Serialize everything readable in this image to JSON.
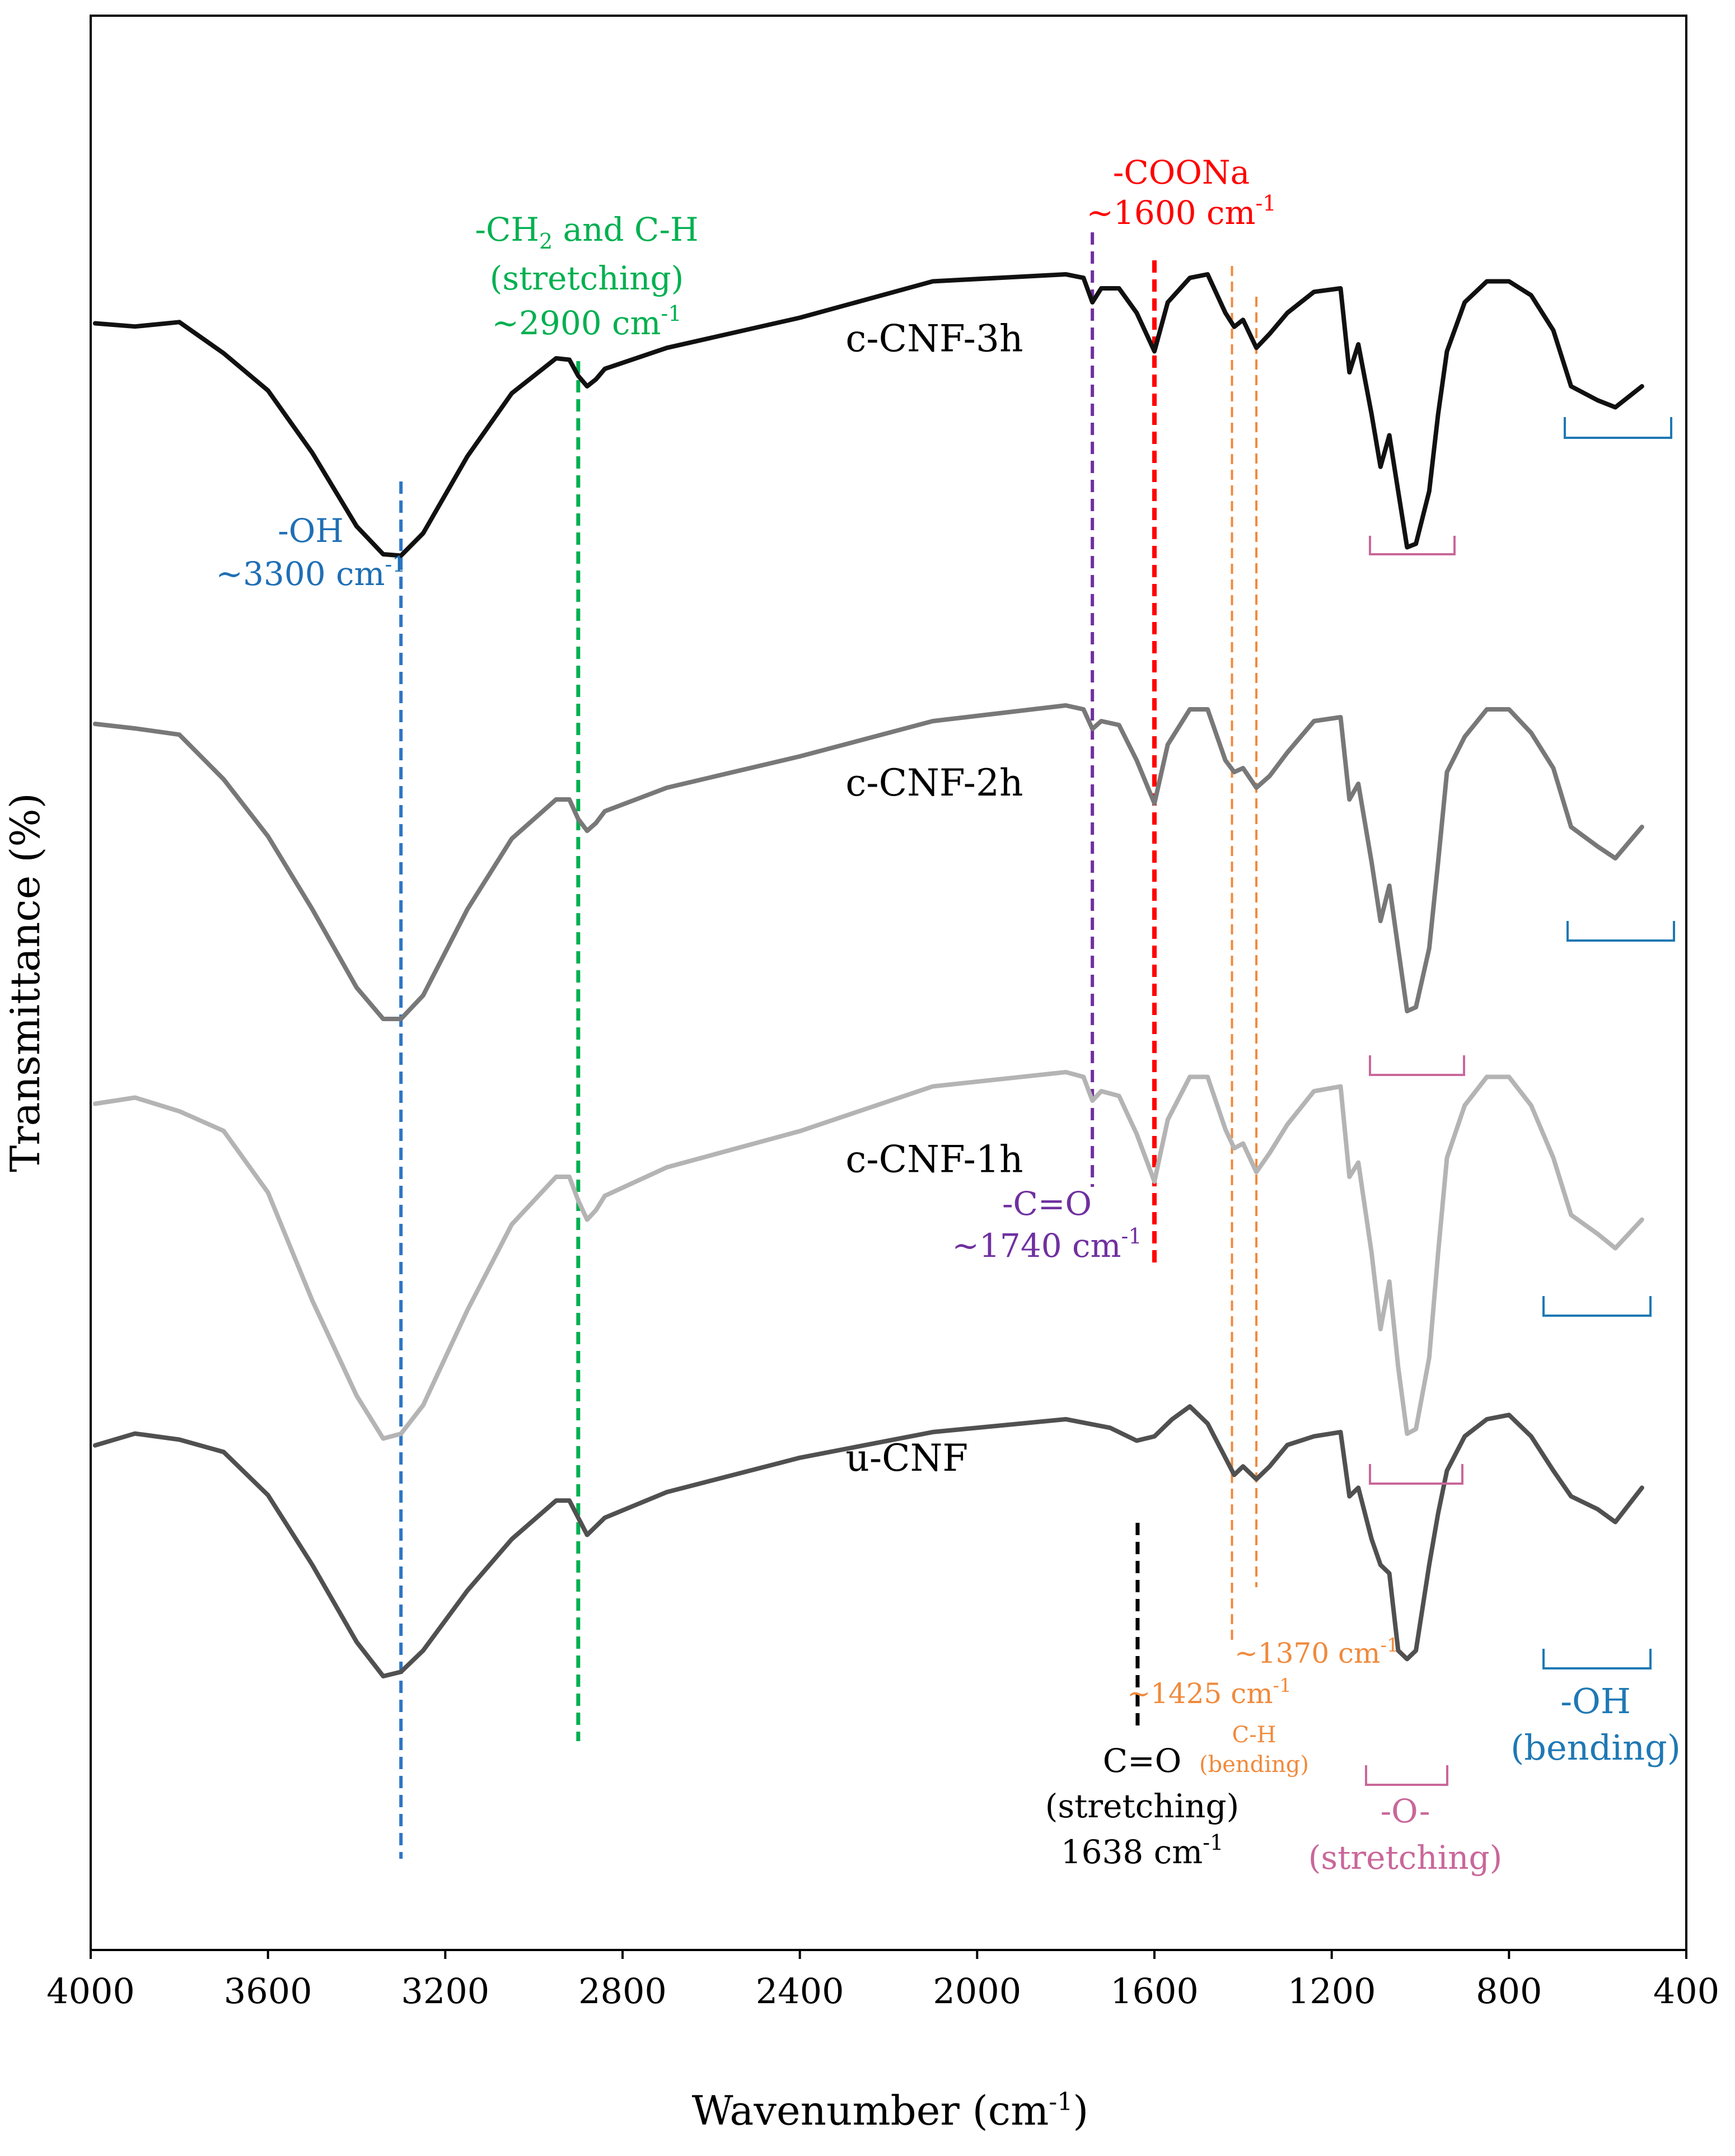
{
  "chart_data": {
    "type": "line",
    "title": "",
    "xlabel": "Wavenumber (cm",
    "xlabel_sup": "-1",
    "xlabel_close": ")",
    "ylabel": "Transmittance (%)",
    "xlim": [
      4000,
      400
    ],
    "x_reversed": true,
    "x_ticks": [
      "4000",
      "3600",
      "3200",
      "2800",
      "2400",
      "2000",
      "1600",
      "1200",
      "800",
      "400"
    ],
    "y_ticks": [],
    "grid": false,
    "legend": "none",
    "series": [
      {
        "name": "c-CNF-3h",
        "color": "#111111",
        "points": [
          [
            3990,
            0.7
          ],
          [
            3900,
            0.71
          ],
          [
            3800,
            0.73
          ],
          [
            3700,
            1.1
          ],
          [
            3600,
            1.65
          ],
          [
            3500,
            2.55
          ],
          [
            3400,
            3.6
          ],
          [
            3340,
            4.0
          ],
          [
            3300,
            4.02
          ],
          [
            3250,
            3.7
          ],
          [
            3150,
            2.6
          ],
          [
            3050,
            1.7
          ],
          [
            2950,
            1.2
          ],
          [
            2920,
            1.22
          ],
          [
            2900,
            1.45
          ],
          [
            2880,
            1.6
          ],
          [
            2860,
            1.5
          ],
          [
            2840,
            1.35
          ],
          [
            2700,
            1.05
          ],
          [
            2400,
            0.62
          ],
          [
            2100,
            0.1
          ],
          [
            1800,
            0.0
          ],
          [
            1760,
            0.05
          ],
          [
            1740,
            0.4
          ],
          [
            1720,
            0.2
          ],
          [
            1680,
            0.2
          ],
          [
            1640,
            0.55
          ],
          [
            1600,
            1.1
          ],
          [
            1570,
            0.4
          ],
          [
            1520,
            0.05
          ],
          [
            1480,
            0.0
          ],
          [
            1440,
            0.55
          ],
          [
            1420,
            0.75
          ],
          [
            1400,
            0.65
          ],
          [
            1370,
            1.05
          ],
          [
            1340,
            0.85
          ],
          [
            1300,
            0.55
          ],
          [
            1240,
            0.25
          ],
          [
            1180,
            0.2
          ],
          [
            1160,
            1.4
          ],
          [
            1140,
            1.0
          ],
          [
            1110,
            2.0
          ],
          [
            1090,
            2.75
          ],
          [
            1070,
            2.3
          ],
          [
            1050,
            3.1
          ],
          [
            1030,
            3.9
          ],
          [
            1010,
            3.85
          ],
          [
            980,
            3.1
          ],
          [
            960,
            2.0
          ],
          [
            940,
            1.1
          ],
          [
            900,
            0.4
          ],
          [
            850,
            0.1
          ],
          [
            800,
            0.1
          ],
          [
            750,
            0.3
          ],
          [
            700,
            0.8
          ],
          [
            660,
            1.6
          ],
          [
            600,
            1.8
          ],
          [
            560,
            1.9
          ],
          [
            500,
            1.6
          ]
        ],
        "label_wn": 2120,
        "label_y": 1.1
      },
      {
        "name": "c-CNF-2h",
        "color": "#787878",
        "points": [
          [
            3990,
            0.2
          ],
          [
            3900,
            0.3
          ],
          [
            3800,
            0.4
          ],
          [
            3700,
            0.9
          ],
          [
            3600,
            1.7
          ],
          [
            3500,
            2.6
          ],
          [
            3400,
            3.6
          ],
          [
            3340,
            4.0
          ],
          [
            3300,
            4.0
          ],
          [
            3250,
            3.7
          ],
          [
            3150,
            2.6
          ],
          [
            3050,
            1.7
          ],
          [
            2950,
            1.2
          ],
          [
            2920,
            1.2
          ],
          [
            2900,
            1.45
          ],
          [
            2880,
            1.6
          ],
          [
            2860,
            1.5
          ],
          [
            2840,
            1.35
          ],
          [
            2700,
            1.05
          ],
          [
            2400,
            0.65
          ],
          [
            2100,
            0.2
          ],
          [
            1800,
            0.0
          ],
          [
            1760,
            0.05
          ],
          [
            1740,
            0.3
          ],
          [
            1720,
            0.2
          ],
          [
            1680,
            0.25
          ],
          [
            1640,
            0.7
          ],
          [
            1600,
            1.25
          ],
          [
            1570,
            0.5
          ],
          [
            1520,
            0.05
          ],
          [
            1480,
            0.05
          ],
          [
            1440,
            0.7
          ],
          [
            1420,
            0.85
          ],
          [
            1400,
            0.8
          ],
          [
            1370,
            1.05
          ],
          [
            1340,
            0.9
          ],
          [
            1300,
            0.6
          ],
          [
            1240,
            0.2
          ],
          [
            1180,
            0.15
          ],
          [
            1160,
            1.2
          ],
          [
            1140,
            1.0
          ],
          [
            1110,
            2.0
          ],
          [
            1090,
            2.75
          ],
          [
            1070,
            2.3
          ],
          [
            1050,
            3.1
          ],
          [
            1030,
            3.9
          ],
          [
            1010,
            3.85
          ],
          [
            980,
            3.1
          ],
          [
            960,
            2.0
          ],
          [
            940,
            0.85
          ],
          [
            900,
            0.4
          ],
          [
            850,
            0.05
          ],
          [
            800,
            0.05
          ],
          [
            750,
            0.35
          ],
          [
            700,
            0.8
          ],
          [
            660,
            1.55
          ],
          [
            600,
            1.8
          ],
          [
            560,
            1.95
          ],
          [
            500,
            1.55
          ]
        ],
        "label_wn": 2120,
        "label_y": 1.15
      },
      {
        "name": "c-CNF-1h",
        "color": "#b4b4b4",
        "points": [
          [
            3990,
            0.3
          ],
          [
            3900,
            0.3
          ],
          [
            3800,
            0.4
          ],
          [
            3700,
            0.6
          ],
          [
            3600,
            1.3
          ],
          [
            3500,
            2.4
          ],
          [
            3400,
            3.4
          ],
          [
            3340,
            3.85
          ],
          [
            3300,
            3.8
          ],
          [
            3250,
            3.5
          ],
          [
            3150,
            2.5
          ],
          [
            3050,
            1.6
          ],
          [
            2950,
            1.1
          ],
          [
            2920,
            1.1
          ],
          [
            2900,
            1.35
          ],
          [
            2880,
            1.55
          ],
          [
            2860,
            1.45
          ],
          [
            2840,
            1.3
          ],
          [
            2700,
            1.0
          ],
          [
            2400,
            0.62
          ],
          [
            2100,
            0.15
          ],
          [
            1800,
            0.0
          ],
          [
            1760,
            0.05
          ],
          [
            1740,
            0.3
          ],
          [
            1720,
            0.2
          ],
          [
            1680,
            0.25
          ],
          [
            1640,
            0.65
          ],
          [
            1600,
            1.15
          ],
          [
            1570,
            0.5
          ],
          [
            1520,
            0.05
          ],
          [
            1480,
            0.05
          ],
          [
            1440,
            0.6
          ],
          [
            1420,
            0.8
          ],
          [
            1400,
            0.75
          ],
          [
            1370,
            1.05
          ],
          [
            1340,
            0.85
          ],
          [
            1300,
            0.55
          ],
          [
            1240,
            0.2
          ],
          [
            1180,
            0.15
          ],
          [
            1160,
            1.1
          ],
          [
            1140,
            0.95
          ],
          [
            1110,
            1.9
          ],
          [
            1090,
            2.7
          ],
          [
            1070,
            2.2
          ],
          [
            1050,
            3.1
          ],
          [
            1030,
            3.8
          ],
          [
            1010,
            3.75
          ],
          [
            980,
            3.0
          ],
          [
            960,
            1.9
          ],
          [
            940,
            0.9
          ],
          [
            900,
            0.35
          ],
          [
            850,
            0.05
          ],
          [
            800,
            0.05
          ],
          [
            750,
            0.35
          ],
          [
            700,
            0.9
          ],
          [
            660,
            1.5
          ],
          [
            600,
            1.7
          ],
          [
            560,
            1.85
          ],
          [
            500,
            1.55
          ]
        ],
        "label_wn": 2120,
        "label_y": 1.05
      },
      {
        "name": "u-CNF",
        "color": "#505050",
        "points": [
          [
            3990,
            0.3
          ],
          [
            3900,
            0.2
          ],
          [
            3800,
            0.2
          ],
          [
            3700,
            0.4
          ],
          [
            3600,
            0.9
          ],
          [
            3500,
            1.7
          ],
          [
            3400,
            2.6
          ],
          [
            3340,
            3.0
          ],
          [
            3300,
            2.95
          ],
          [
            3250,
            2.7
          ],
          [
            3150,
            2.0
          ],
          [
            3050,
            1.4
          ],
          [
            2950,
            0.95
          ],
          [
            2920,
            0.95
          ],
          [
            2900,
            1.15
          ],
          [
            2880,
            1.35
          ],
          [
            2860,
            1.25
          ],
          [
            2840,
            1.15
          ],
          [
            2700,
            0.85
          ],
          [
            2400,
            0.45
          ],
          [
            2100,
            0.15
          ],
          [
            1800,
            0.0
          ],
          [
            1700,
            0.1
          ],
          [
            1640,
            0.25
          ],
          [
            1600,
            0.2
          ],
          [
            1560,
            0.0
          ],
          [
            1520,
            -0.15
          ],
          [
            1480,
            0.05
          ],
          [
            1440,
            0.45
          ],
          [
            1420,
            0.65
          ],
          [
            1400,
            0.55
          ],
          [
            1370,
            0.7
          ],
          [
            1340,
            0.55
          ],
          [
            1300,
            0.3
          ],
          [
            1240,
            0.2
          ],
          [
            1180,
            0.15
          ],
          [
            1160,
            0.9
          ],
          [
            1140,
            0.8
          ],
          [
            1110,
            1.4
          ],
          [
            1090,
            1.7
          ],
          [
            1070,
            1.8
          ],
          [
            1050,
            2.7
          ],
          [
            1030,
            2.8
          ],
          [
            1010,
            2.7
          ],
          [
            980,
            1.7
          ],
          [
            960,
            1.1
          ],
          [
            940,
            0.6
          ],
          [
            900,
            0.2
          ],
          [
            850,
            0.0
          ],
          [
            800,
            -0.05
          ],
          [
            750,
            0.2
          ],
          [
            700,
            0.6
          ],
          [
            660,
            0.9
          ],
          [
            600,
            1.05
          ],
          [
            560,
            1.2
          ],
          [
            500,
            0.8
          ]
        ],
        "label_wn": 2120,
        "label_y": 0.6
      }
    ],
    "reference_lines": [
      {
        "wn": 3300,
        "color": "#2e75c6"
      },
      {
        "wn": 2900,
        "color": "#00b050"
      },
      {
        "wn": 1740,
        "color": "#7030a0"
      },
      {
        "wn": 1600,
        "color": "#ff0000"
      },
      {
        "wn": 1425,
        "color": "#f08a3c"
      },
      {
        "wn": 1370,
        "color": "#f08a3c"
      },
      {
        "wn": 1638,
        "color": "#000000"
      }
    ],
    "annotations": {
      "oh": {
        "line1": "-OH",
        "line2": "~3300 cm",
        "sup": "-1",
        "color": "#1f6fb5"
      },
      "ch2_line1": "-CH",
      "ch2_sub": "2",
      "ch2_rest": " and C-H",
      "ch2_line2": "(stretching)",
      "ch2_line3": "~2900 cm",
      "ch2_sup": "-1",
      "ch2_color": "#00b050",
      "coona": {
        "line1": "-COONa",
        "line2": "~1600 cm",
        "sup": "-1",
        "color": "#ff0000"
      },
      "co_carb": {
        "line1": "-C=O",
        "line2": "~1740 cm",
        "sup": "-1",
        "color": "#7030a0"
      },
      "ch_1370": {
        "text": "~1370 cm",
        "sup": "-1",
        "color": "#f08a3c"
      },
      "ch_1425": {
        "text": "~1425 cm",
        "sup": "-1",
        "line2": "C-H",
        "line3": "(bending)",
        "color": "#f08a3c"
      },
      "co_stretch": {
        "line1": "C=O",
        "line2": "(stretching)",
        "line3": "1638 cm",
        "sup": "-1",
        "color": "#000000"
      },
      "o_stretch": {
        "line1": "-O-",
        "line2": "(stretching)",
        "color": "#c9679a"
      },
      "oh_bend": {
        "line1": "-OH",
        "line2": "(bending)",
        "color": "#1f78b4"
      }
    }
  }
}
